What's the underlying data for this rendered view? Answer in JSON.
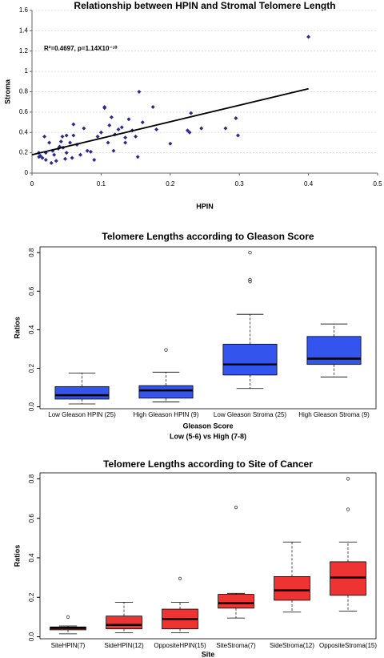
{
  "chart_data": [
    {
      "type": "scatter",
      "title": "Relationship between HPIN and Stromal Telomere Length",
      "x_label": "HPIN",
      "y_label": "Stroma",
      "annotation": "R²=0.4697, p=1.14X10⁻¹⁰",
      "color": "#2b2b8f",
      "grid": true,
      "xlim": [
        0,
        0.5
      ],
      "xticks": [
        0,
        0.1,
        0.2,
        0.3,
        0.4,
        0.5
      ],
      "ylim": [
        0,
        1.6
      ],
      "yticks": [
        0,
        0.2,
        0.4,
        0.6,
        0.8,
        1,
        1.2,
        1.4,
        1.6
      ],
      "x": [
        0.01,
        0.012,
        0.015,
        0.02,
        0.018,
        0.025,
        0.03,
        0.032,
        0.035,
        0.038,
        0.04,
        0.042,
        0.045,
        0.048,
        0.05,
        0.05,
        0.055,
        0.058,
        0.06,
        0.065,
        0.07,
        0.075,
        0.08,
        0.085,
        0.09,
        0.095,
        0.1,
        0.105,
        0.105,
        0.11,
        0.112,
        0.115,
        0.118,
        0.12,
        0.125,
        0.13,
        0.135,
        0.135,
        0.14,
        0.145,
        0.15,
        0.153,
        0.155,
        0.16,
        0.175,
        0.18,
        0.2,
        0.225,
        0.228,
        0.23,
        0.245,
        0.28,
        0.295,
        0.298,
        0.4,
        0.01,
        0.02,
        0.028,
        0.06,
        0.044
      ],
      "values": [
        0.2,
        0.17,
        0.15,
        0.2,
        0.36,
        0.3,
        0.22,
        0.18,
        0.12,
        0.24,
        0.26,
        0.31,
        0.25,
        0.14,
        0.2,
        0.37,
        0.3,
        0.15,
        0.48,
        0.28,
        0.18,
        0.44,
        0.22,
        0.21,
        0.13,
        0.36,
        0.4,
        0.65,
        0.64,
        0.3,
        0.47,
        0.55,
        0.22,
        0.38,
        0.43,
        0.45,
        0.3,
        0.35,
        0.53,
        0.42,
        0.36,
        0.16,
        0.8,
        0.5,
        0.65,
        0.43,
        0.29,
        0.42,
        0.4,
        0.59,
        0.44,
        0.44,
        0.54,
        0.37,
        1.34,
        0.16,
        0.13,
        0.1,
        0.37,
        0.36
      ],
      "fit": {
        "color": "#000000",
        "x": [
          0,
          0.4
        ],
        "values": [
          0.18,
          0.83
        ]
      }
    },
    {
      "type": "box",
      "title": "Telomere Lengths according to Gleason Score",
      "y_label": "Ratios",
      "x_label": "Gleason Score",
      "x_sublabel": "Low (5-6) vs High (7-8)",
      "color": "#3355ee",
      "ylim": [
        -0.01,
        0.83
      ],
      "yticks": [
        {
          "value": 0,
          "label": "0.0"
        },
        0.2,
        0.4,
        0.6,
        0.8
      ],
      "categories": [
        "Low Gleason HPIN (25)",
        "High Gleason HPIN (9)",
        "Low Gleason Stroma (25)",
        "High Gleason Stroma (9)"
      ],
      "boxes": [
        {
          "whislo": 0.015,
          "q1": 0.04,
          "med": 0.06,
          "q3": 0.105,
          "whishi": 0.175,
          "fliers": []
        },
        {
          "whislo": 0.025,
          "q1": 0.045,
          "med": 0.085,
          "q3": 0.11,
          "whishi": 0.18,
          "fliers": [
            0.295
          ]
        },
        {
          "whislo": 0.095,
          "q1": 0.165,
          "med": 0.22,
          "q3": 0.325,
          "whishi": 0.48,
          "fliers": [
            0.65,
            0.66,
            0.8
          ]
        },
        {
          "whislo": 0.155,
          "q1": 0.22,
          "med": 0.25,
          "q3": 0.365,
          "whishi": 0.43,
          "fliers": []
        }
      ]
    },
    {
      "type": "box",
      "title": "Telomere Lengths according to Site of Cancer",
      "y_label": "Ratios",
      "x_label": "Site",
      "color": "#ee3333",
      "ylim": [
        -0.01,
        0.83
      ],
      "yticks": [
        {
          "value": 0,
          "label": "0.0"
        },
        0.2,
        0.4,
        0.6,
        0.8
      ],
      "categories": [
        "SiteHPIN(7)",
        "SideHPIN(12)",
        "OppositeHPIN(15)",
        "SiteStroma(7)",
        "SideStroma(12)",
        "OppositeStroma(15)"
      ],
      "boxes": [
        {
          "whislo": 0.015,
          "q1": 0.035,
          "med": 0.045,
          "q3": 0.05,
          "whishi": 0.055,
          "fliers": [
            0.1
          ]
        },
        {
          "whislo": 0.02,
          "q1": 0.04,
          "med": 0.06,
          "q3": 0.105,
          "whishi": 0.175,
          "fliers": []
        },
        {
          "whislo": 0.02,
          "q1": 0.04,
          "med": 0.09,
          "q3": 0.14,
          "whishi": 0.175,
          "fliers": [
            0.295
          ]
        },
        {
          "whislo": 0.095,
          "q1": 0.145,
          "med": 0.17,
          "q3": 0.215,
          "whishi": 0.22,
          "fliers": [
            0.655
          ]
        },
        {
          "whislo": 0.125,
          "q1": 0.185,
          "med": 0.235,
          "q3": 0.305,
          "whishi": 0.48,
          "fliers": []
        },
        {
          "whislo": 0.13,
          "q1": 0.21,
          "med": 0.3,
          "q3": 0.38,
          "whishi": 0.48,
          "fliers": [
            0.645,
            0.8
          ]
        }
      ]
    }
  ]
}
